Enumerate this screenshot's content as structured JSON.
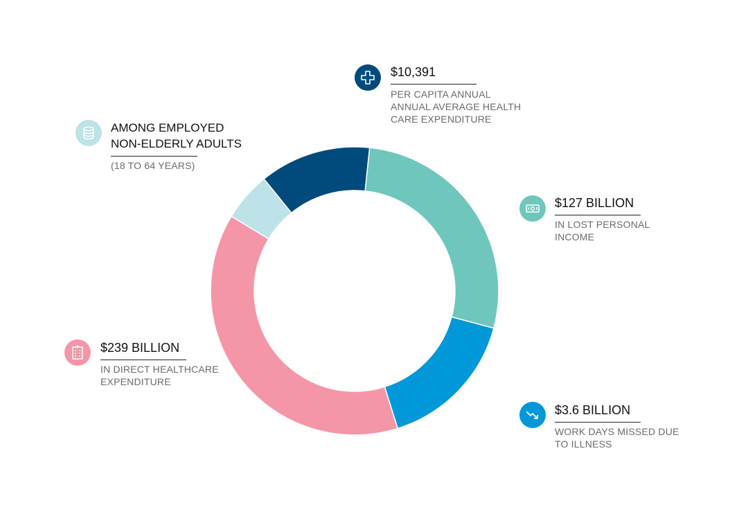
{
  "chart_data": {
    "type": "pie",
    "title": "",
    "slices": [
      {
        "label": "$10,391",
        "value": 12.5,
        "color": "#004a7c"
      },
      {
        "label": "$127 BILLION",
        "value": 27.5,
        "color": "#6ec6bd"
      },
      {
        "label": "$3.6 BILLION",
        "value": 16.0,
        "color": "#0098d9"
      },
      {
        "label": "$239 BILLION",
        "value": 38.5,
        "color": "#f596a8"
      },
      {
        "label": "AMONG EMPLOYED NON-ELDERLY ADULTS",
        "value": 5.5,
        "color": "#bde2e8"
      }
    ]
  },
  "callouts": {
    "per_capita": {
      "value": "$10,391",
      "lines": [
        "PER CAPITA ANNUAL",
        "ANNUAL AVERAGE HEALTH",
        "CARE EXPENDITURE"
      ],
      "icon": "medical-cross-icon",
      "color": "#004a7c"
    },
    "lost_income": {
      "value": "$127 BILLION",
      "lines": [
        "IN LOST PERSONAL",
        "INCOME"
      ],
      "icon": "banknote-icon",
      "color": "#6ec6bd"
    },
    "work_days": {
      "value": "$3.6 BILLION",
      "lines": [
        "WORK DAYS MISSED DUE",
        "TO ILLNESS"
      ],
      "icon": "trend-down-icon",
      "color": "#0098d9"
    },
    "direct_healthcare": {
      "value": "$239 BILLION",
      "lines": [
        "IN DIRECT HEALTHCARE",
        "EXPENDITURE"
      ],
      "icon": "hospital-icon",
      "color": "#f596a8"
    },
    "employed": {
      "heading_lines": [
        "AMONG EMPLOYED",
        "NON-ELDERLY ADULTS"
      ],
      "sub": "(18 TO 64 YEARS)",
      "icon": "coins-stack-icon",
      "color": "#bde2e8"
    }
  }
}
